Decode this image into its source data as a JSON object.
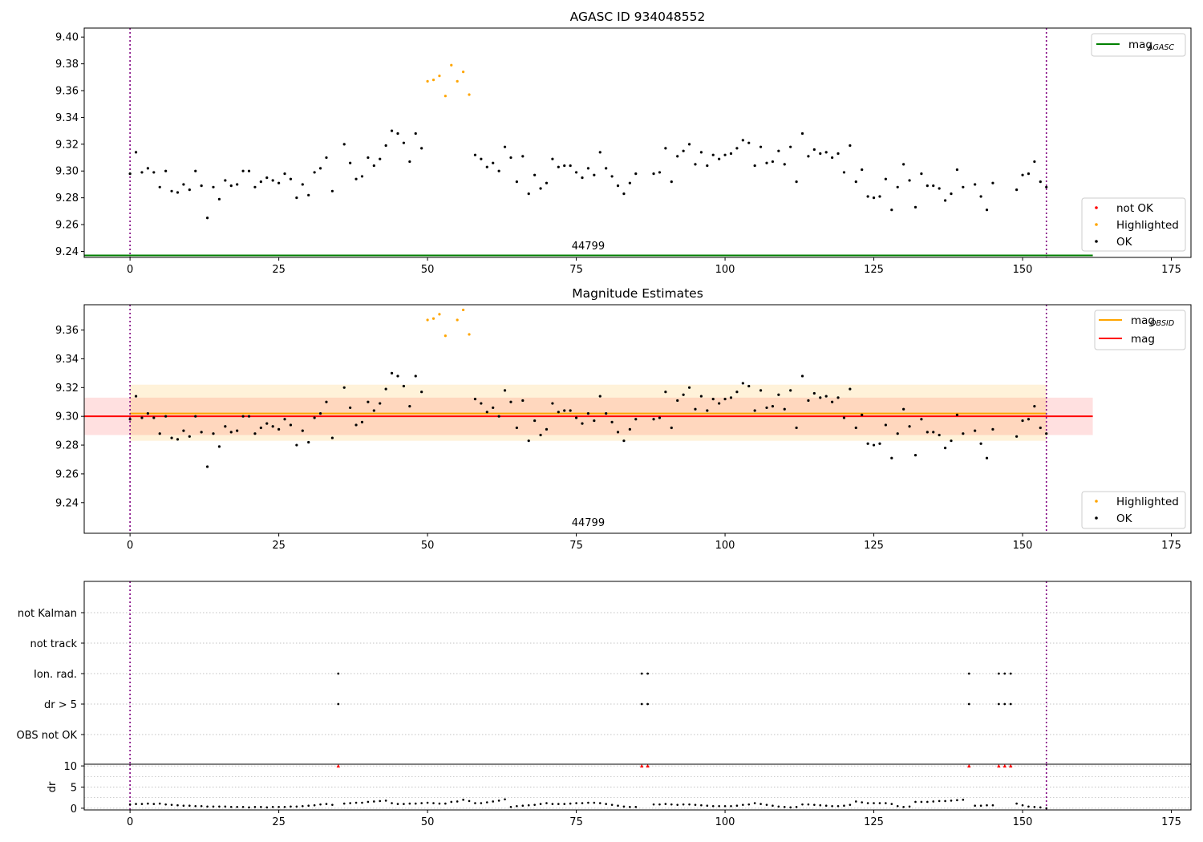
{
  "chart_data": [
    {
      "type": "scatter",
      "title": "AGASC ID 934048552",
      "xlabel": "",
      "ylabel": "",
      "xlim": [
        -7.7,
        178.3
      ],
      "ylim": [
        9.2355,
        9.4067
      ],
      "x_ticks": [
        0,
        25,
        50,
        75,
        100,
        125,
        150,
        175
      ],
      "y_ticks": [
        9.24,
        9.26,
        9.28,
        9.3,
        9.32,
        9.34,
        9.36,
        9.38,
        9.4
      ],
      "y_tick_labels": [
        "9.24",
        "9.26",
        "9.28",
        "9.30",
        "9.32",
        "9.34",
        "9.36",
        "9.38",
        "9.40"
      ],
      "grid": false,
      "obsid_label": "44799",
      "obsid_label_x": 77,
      "obsid_boundaries": [
        0,
        154
      ],
      "mag_agasc": 9.237,
      "mag_agasc_xrange": [
        -7.7,
        161.8
      ],
      "colors": {
        "ok": "#000000",
        "highlighted": "#ffa500",
        "not_ok": "#ff0000",
        "agasc": "#008000",
        "boundary": "#800080"
      },
      "legend_lines": [
        {
          "label": "mag",
          "subscript": "AGASC",
          "color": "#008000"
        }
      ],
      "legend_points": [
        {
          "label": "not OK",
          "color": "#ff0000"
        },
        {
          "label": "Highlighted",
          "color": "#ffa500"
        },
        {
          "label": "OK",
          "color": "#000000"
        }
      ],
      "series": [
        {
          "name": "OK",
          "x": [
            0,
            1,
            2,
            3,
            4,
            5,
            6,
            7,
            8,
            9,
            10,
            11,
            12,
            13,
            14,
            15,
            16,
            17,
            18,
            19,
            20,
            21,
            22,
            23,
            24,
            25,
            26,
            27,
            28,
            29,
            30,
            31,
            32,
            33,
            34,
            36,
            37,
            38,
            39,
            40,
            41,
            42,
            43,
            44,
            45,
            46,
            47,
            48,
            49,
            58,
            59,
            60,
            61,
            62,
            63,
            64,
            65,
            66,
            67,
            68,
            69,
            70,
            71,
            72,
            73,
            74,
            75,
            76,
            77,
            78,
            79,
            80,
            81,
            82,
            83,
            84,
            85,
            88,
            89,
            90,
            91,
            92,
            93,
            94,
            95,
            96,
            97,
            98,
            99,
            100,
            101,
            102,
            103,
            104,
            105,
            106,
            107,
            108,
            109,
            110,
            111,
            112,
            113,
            114,
            115,
            116,
            117,
            118,
            119,
            120,
            121,
            122,
            123,
            124,
            125,
            126,
            127,
            128,
            129,
            130,
            131,
            132,
            133,
            134,
            135,
            136,
            137,
            138,
            139,
            140,
            142,
            143,
            144,
            145,
            149,
            150,
            151,
            152,
            153,
            154
          ],
          "y": [
            9.298,
            9.314,
            9.299,
            9.302,
            9.299,
            9.288,
            9.3,
            9.285,
            9.284,
            9.29,
            9.286,
            9.3,
            9.289,
            9.265,
            9.288,
            9.279,
            9.293,
            9.289,
            9.29,
            9.3,
            9.3,
            9.288,
            9.292,
            9.295,
            9.293,
            9.291,
            9.298,
            9.294,
            9.28,
            9.29,
            9.282,
            9.299,
            9.302,
            9.31,
            9.285,
            9.32,
            9.306,
            9.294,
            9.296,
            9.31,
            9.304,
            9.309,
            9.319,
            9.33,
            9.328,
            9.321,
            9.307,
            9.328,
            9.317,
            9.312,
            9.309,
            9.303,
            9.306,
            9.3,
            9.318,
            9.31,
            9.292,
            9.311,
            9.283,
            9.297,
            9.287,
            9.291,
            9.309,
            9.303,
            9.304,
            9.304,
            9.299,
            9.295,
            9.302,
            9.297,
            9.314,
            9.302,
            9.296,
            9.289,
            9.283,
            9.291,
            9.298,
            9.298,
            9.299,
            9.317,
            9.292,
            9.311,
            9.315,
            9.32,
            9.305,
            9.314,
            9.304,
            9.312,
            9.309,
            9.312,
            9.313,
            9.317,
            9.323,
            9.321,
            9.304,
            9.318,
            9.306,
            9.307,
            9.315,
            9.305,
            9.318,
            9.292,
            9.328,
            9.311,
            9.316,
            9.313,
            9.314,
            9.31,
            9.313,
            9.299,
            9.319,
            9.292,
            9.301,
            9.281,
            9.28,
            9.281,
            9.294,
            9.271,
            9.288,
            9.305,
            9.293,
            9.273,
            9.298,
            9.289,
            9.289,
            9.287,
            9.278,
            9.283,
            9.301,
            9.288,
            9.29,
            9.281,
            9.271,
            9.291,
            9.286,
            9.297,
            9.298,
            9.307,
            9.292,
            9.288
          ]
        },
        {
          "name": "Highlighted",
          "x": [
            50,
            51,
            52,
            53,
            54,
            55,
            56,
            57
          ],
          "y": [
            9.367,
            9.368,
            9.371,
            9.356,
            9.379,
            9.367,
            9.374,
            9.357
          ]
        }
      ]
    },
    {
      "type": "scatter",
      "title": "Magnitude Estimates",
      "xlabel": "",
      "ylabel": "",
      "xlim": [
        -7.7,
        178.3
      ],
      "ylim": [
        9.2187,
        9.3776
      ],
      "x_ticks": [
        0,
        25,
        50,
        75,
        100,
        125,
        150,
        175
      ],
      "y_ticks": [
        9.24,
        9.26,
        9.28,
        9.3,
        9.32,
        9.34,
        9.36
      ],
      "y_tick_labels": [
        "9.24",
        "9.26",
        "9.28",
        "9.30",
        "9.32",
        "9.34",
        "9.36"
      ],
      "grid": false,
      "obsid_label": "44799",
      "obsid_label_x": 77,
      "obsid_boundaries": [
        0,
        154
      ],
      "mag_obsid": 9.302,
      "mag_obsid_band": [
        9.283,
        9.322
      ],
      "mag_obsid_xrange": [
        0,
        154
      ],
      "mag": 9.3,
      "mag_band": [
        9.287,
        9.313
      ],
      "mag_xrange": [
        -7.7,
        161.8
      ],
      "colors": {
        "ok": "#000000",
        "highlighted": "#ffa500",
        "mag_obsid": "#ffa500",
        "mag": "#ff0000",
        "boundary": "#800080"
      },
      "legend_lines": [
        {
          "label": "mag",
          "subscript": "OBSID",
          "color": "#ffa500"
        },
        {
          "label": "mag",
          "subscript": "",
          "color": "#ff0000"
        }
      ],
      "legend_points": [
        {
          "label": "Highlighted",
          "color": "#ffa500"
        },
        {
          "label": "OK",
          "color": "#000000"
        }
      ]
    },
    {
      "type": "scatter",
      "title": "",
      "xlim": [
        -7.7,
        178.3
      ],
      "flag_categories": [
        "not Kalman",
        "not track",
        "Ion. rad.",
        "dr > 5",
        "OBS not OK"
      ],
      "flags": {
        "Ion. rad.": [
          35,
          86,
          87,
          141,
          146,
          147,
          148
        ],
        "dr > 5": [
          35,
          86,
          87,
          141,
          146,
          147,
          148
        ]
      },
      "grid": true,
      "obsid_boundaries": [
        0,
        154
      ]
    },
    {
      "type": "line",
      "title": "",
      "xlabel": "",
      "ylabel": "dr",
      "xlim": [
        -7.7,
        178.3
      ],
      "ylim": [
        -0.4,
        10.4
      ],
      "x_ticks": [
        0,
        25,
        50,
        75,
        100,
        125,
        150,
        175
      ],
      "y_ticks": [
        0,
        5,
        10
      ],
      "grid": true,
      "obsid_boundaries": [
        0,
        154
      ],
      "clipped_points_x": [
        35,
        86,
        87,
        141,
        146,
        147,
        148
      ],
      "clipped_value": 10,
      "x": [
        0,
        1,
        2,
        3,
        4,
        5,
        6,
        7,
        8,
        9,
        10,
        11,
        12,
        13,
        14,
        15,
        16,
        17,
        18,
        19,
        20,
        21,
        22,
        23,
        24,
        25,
        26,
        27,
        28,
        29,
        30,
        31,
        32,
        33,
        34,
        36,
        37,
        38,
        39,
        40,
        41,
        42,
        43,
        44,
        45,
        46,
        47,
        48,
        49,
        50,
        51,
        52,
        53,
        54,
        55,
        56,
        57,
        58,
        59,
        60,
        61,
        62,
        63,
        64,
        65,
        66,
        67,
        68,
        69,
        70,
        71,
        72,
        73,
        74,
        75,
        76,
        77,
        78,
        79,
        80,
        81,
        82,
        83,
        84,
        85,
        88,
        89,
        90,
        91,
        92,
        93,
        94,
        95,
        96,
        97,
        98,
        99,
        100,
        101,
        102,
        103,
        104,
        105,
        106,
        107,
        108,
        109,
        110,
        111,
        112,
        113,
        114,
        115,
        116,
        117,
        118,
        119,
        120,
        121,
        122,
        123,
        124,
        125,
        126,
        127,
        128,
        129,
        130,
        131,
        132,
        133,
        134,
        135,
        136,
        137,
        138,
        139,
        140,
        142,
        143,
        144,
        145,
        149,
        150,
        151,
        152,
        153,
        154
      ],
      "y": [
        0.9,
        1.0,
        1.0,
        1.1,
        1.0,
        1.1,
        0.9,
        0.8,
        0.7,
        0.6,
        0.6,
        0.5,
        0.5,
        0.4,
        0.4,
        0.4,
        0.4,
        0.3,
        0.3,
        0.3,
        0.2,
        0.3,
        0.3,
        0.2,
        0.3,
        0.3,
        0.3,
        0.4,
        0.4,
        0.5,
        0.6,
        0.7,
        0.9,
        1.0,
        0.8,
        1.1,
        1.2,
        1.3,
        1.3,
        1.5,
        1.6,
        1.7,
        1.8,
        1.2,
        1.0,
        1.0,
        1.1,
        1.1,
        1.2,
        1.3,
        1.2,
        1.1,
        1.1,
        1.5,
        1.6,
        2.0,
        1.7,
        1.2,
        1.2,
        1.4,
        1.6,
        1.8,
        2.1,
        0.3,
        0.5,
        0.6,
        0.7,
        0.8,
        1.0,
        1.2,
        1.0,
        1.0,
        1.0,
        1.1,
        1.2,
        1.2,
        1.3,
        1.3,
        1.2,
        1.0,
        0.8,
        0.6,
        0.4,
        0.3,
        0.3,
        0.9,
        0.9,
        1.0,
        0.9,
        0.8,
        0.9,
        0.9,
        0.8,
        0.7,
        0.6,
        0.5,
        0.5,
        0.5,
        0.5,
        0.6,
        0.8,
        0.9,
        1.2,
        1.0,
        0.8,
        0.6,
        0.4,
        0.3,
        0.2,
        0.3,
        0.9,
        0.9,
        0.8,
        0.7,
        0.6,
        0.5,
        0.5,
        0.6,
        0.8,
        1.6,
        1.4,
        1.2,
        1.2,
        1.2,
        1.2,
        1.0,
        0.5,
        0.3,
        0.4,
        1.5,
        1.5,
        1.5,
        1.6,
        1.7,
        1.7,
        1.8,
        1.9,
        2.0,
        0.6,
        0.6,
        0.7,
        0.7,
        1.1,
        0.7,
        0.4,
        0.3,
        0.2,
        0.0
      ],
      "colors": {
        "points": "#000000",
        "clipped": "#ff0000",
        "boundary": "#800080",
        "grid": "#b0b0b0"
      }
    }
  ]
}
